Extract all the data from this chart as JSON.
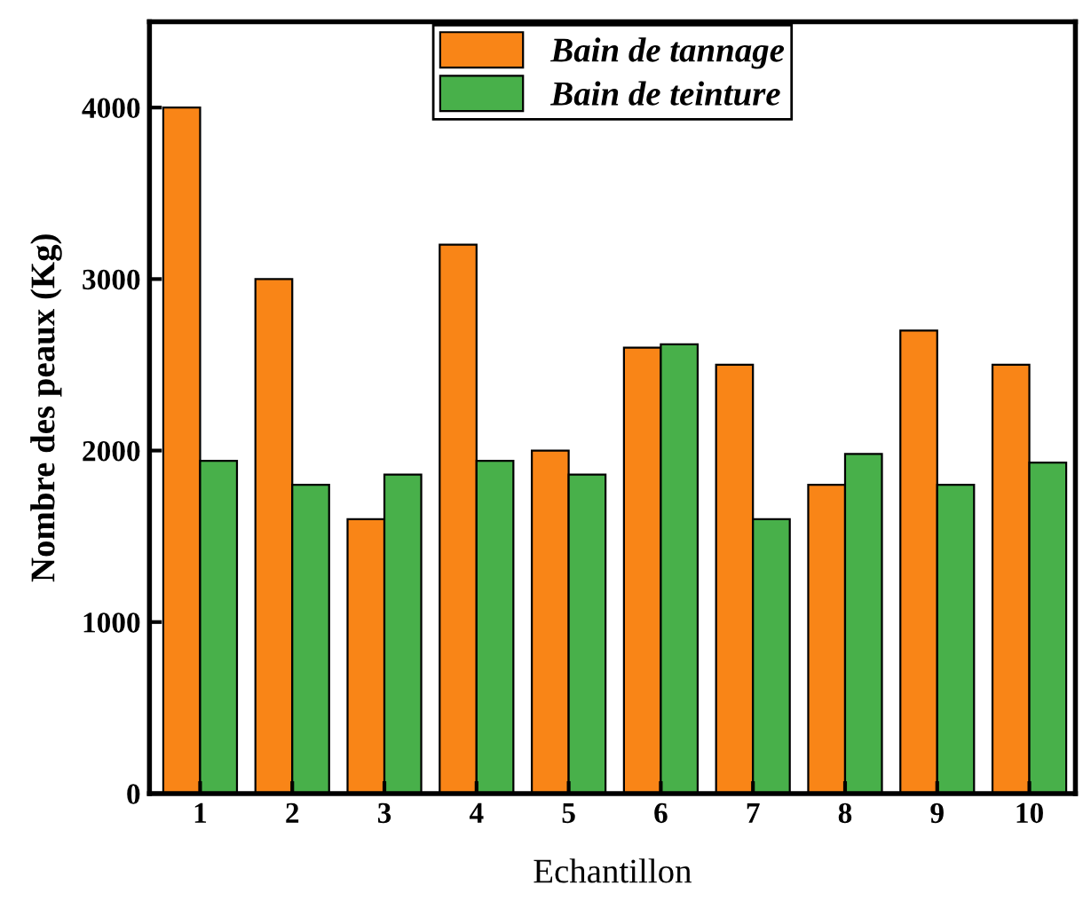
{
  "chart_data": {
    "type": "bar",
    "xlabel": "Echantillon",
    "ylabel": "Nombre des peaux (Kg)",
    "categories": [
      "1",
      "2",
      "3",
      "4",
      "5",
      "6",
      "7",
      "8",
      "9",
      "10"
    ],
    "series": [
      {
        "name": "Bain de tannage",
        "color": "#f98517",
        "values": [
          4000,
          3000,
          1600,
          3200,
          2000,
          2600,
          2500,
          1800,
          2700,
          2500
        ]
      },
      {
        "name": "Bain de teinture",
        "color": "#48b04a",
        "values": [
          1940,
          1800,
          1860,
          1940,
          1860,
          2620,
          1600,
          1980,
          1800,
          1930
        ]
      }
    ],
    "ylim": [
      0,
      4500
    ],
    "yticks": [
      0,
      1000,
      2000,
      3000,
      4000
    ],
    "grid": false,
    "legend": "top"
  }
}
